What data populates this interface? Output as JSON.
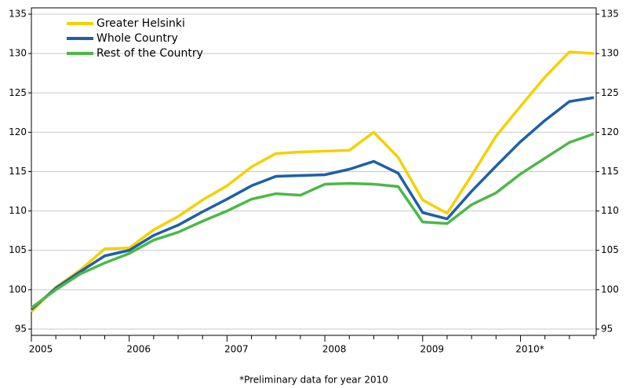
{
  "chart_data": {
    "type": "line",
    "note": "*Preliminary data for year 2010",
    "categories": [
      "2005",
      null,
      null,
      null,
      "2006",
      null,
      null,
      null,
      "2007",
      null,
      null,
      null,
      "2008",
      null,
      null,
      null,
      "2009",
      null,
      null,
      null,
      "2010*",
      null,
      null,
      null
    ],
    "series": [
      {
        "name": "Greater Helsinki",
        "color": "#f5d000",
        "values": [
          97.2,
          100.3,
          102.5,
          105.2,
          105.3,
          107.6,
          109.3,
          111.4,
          113.2,
          115.6,
          117.3,
          117.5,
          117.6,
          117.7,
          120.0,
          116.8,
          111.4,
          109.7,
          114.5,
          119.5,
          123.3,
          127.0,
          130.2,
          130.0
        ]
      },
      {
        "name": "Whole Country",
        "color": "#1f5fa8",
        "values": [
          97.5,
          100.2,
          102.3,
          104.3,
          105.0,
          106.9,
          108.2,
          109.9,
          111.5,
          113.2,
          114.4,
          114.5,
          114.6,
          115.3,
          116.3,
          114.8,
          109.8,
          109.0,
          112.5,
          115.7,
          118.8,
          121.5,
          123.9,
          124.4
        ]
      },
      {
        "name": "Rest of the Country",
        "color": "#4cb848",
        "values": [
          97.7,
          100.0,
          102.0,
          103.4,
          104.6,
          106.3,
          107.3,
          108.7,
          110.0,
          111.5,
          112.2,
          112.0,
          113.4,
          113.5,
          113.4,
          113.1,
          108.6,
          108.4,
          110.8,
          112.3,
          114.7,
          116.7,
          118.7,
          119.8
        ]
      }
    ],
    "ylim": [
      94.2,
      135.8
    ],
    "yticks": [
      95,
      100,
      105,
      110,
      115,
      120,
      125,
      130,
      135
    ],
    "grid": true,
    "legend": "upper-left"
  }
}
